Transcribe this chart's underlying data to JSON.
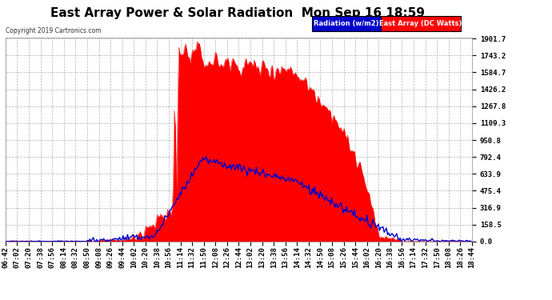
{
  "title": "East Array Power & Solar Radiation  Mon Sep 16 18:59",
  "copyright": "Copyright 2019 Cartronics.com",
  "legend_blue_label": "Radiation (w/m2)",
  "legend_red_label": "East Array (DC Watts)",
  "y_ticks": [
    0.0,
    158.5,
    316.9,
    475.4,
    633.9,
    792.4,
    950.8,
    1109.3,
    1267.8,
    1426.2,
    1584.7,
    1743.2,
    1901.7
  ],
  "y_max": 1901.7,
  "plot_bg": "#ffffff",
  "grid_color": "#aaaaaa",
  "title_color": "#000000",
  "x_labels": [
    "06:42",
    "07:02",
    "07:20",
    "07:38",
    "07:56",
    "08:14",
    "08:32",
    "08:50",
    "09:08",
    "09:26",
    "09:44",
    "10:02",
    "10:20",
    "10:38",
    "10:56",
    "11:14",
    "11:32",
    "11:50",
    "12:08",
    "12:26",
    "12:44",
    "13:02",
    "13:20",
    "13:38",
    "13:56",
    "14:14",
    "14:32",
    "14:50",
    "15:08",
    "15:26",
    "15:44",
    "16:02",
    "16:20",
    "16:38",
    "16:56",
    "17:14",
    "17:32",
    "17:50",
    "18:08",
    "18:26",
    "18:44"
  ],
  "red_color": "#ff0000",
  "blue_color": "#0000cc",
  "title_fontsize": 11,
  "tick_fontsize": 6.5,
  "fig_width": 6.9,
  "fig_height": 3.75,
  "dpi": 100
}
